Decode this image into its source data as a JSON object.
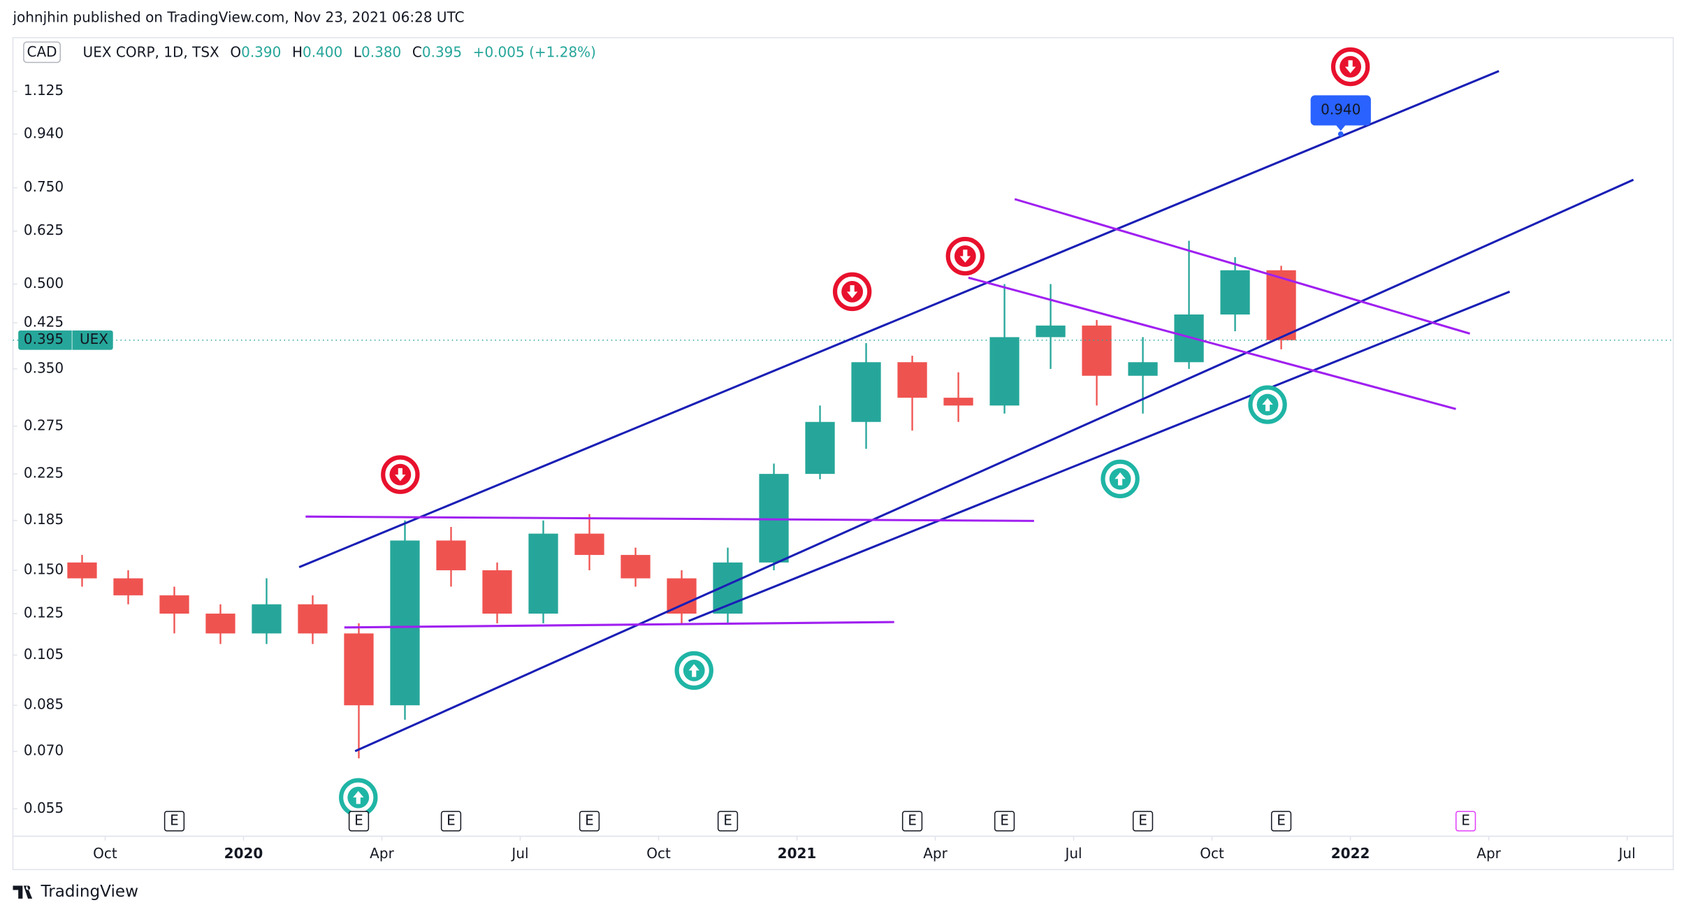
{
  "header": {
    "publisher": "johnjhin published on TradingView.com, Nov 23, 2021 06:28 UTC"
  },
  "legend": {
    "currency": "CAD",
    "symbol": "UEX CORP, 1D, TSX",
    "o_label": "O",
    "open": "0.390",
    "h_label": "H",
    "high": "0.400",
    "l_label": "L",
    "low": "0.380",
    "c_label": "C",
    "close": "0.395",
    "change": "+0.005 (+1.28%)"
  },
  "footer": {
    "brand": "TradingView"
  },
  "chart_data": {
    "type": "candlestick",
    "log_scale": true,
    "up_color": "#26a69a",
    "down_color": "#ef5350",
    "x": [
      "2019-09",
      "2019-10",
      "2019-11",
      "2019-12",
      "2020-01",
      "2020-02",
      "2020-03",
      "2020-04",
      "2020-05",
      "2020-06",
      "2020-07",
      "2020-08",
      "2020-09",
      "2020-10",
      "2020-11",
      "2020-12",
      "2021-01",
      "2021-02",
      "2021-03",
      "2021-04",
      "2021-05",
      "2021-06",
      "2021-07",
      "2021-08",
      "2021-09",
      "2021-10",
      "2021-11"
    ],
    "open": [
      0.155,
      0.145,
      0.135,
      0.125,
      0.115,
      0.13,
      0.115,
      0.085,
      0.17,
      0.15,
      0.125,
      0.175,
      0.16,
      0.145,
      0.125,
      0.155,
      0.225,
      0.28,
      0.36,
      0.31,
      0.3,
      0.4,
      0.42,
      0.34,
      0.36,
      0.44,
      0.53
    ],
    "high": [
      0.16,
      0.15,
      0.14,
      0.13,
      0.145,
      0.135,
      0.12,
      0.185,
      0.18,
      0.155,
      0.185,
      0.19,
      0.165,
      0.15,
      0.165,
      0.235,
      0.3,
      0.39,
      0.37,
      0.345,
      0.5,
      0.5,
      0.43,
      0.4,
      0.6,
      0.56,
      0.54
    ],
    "low": [
      0.14,
      0.13,
      0.115,
      0.11,
      0.11,
      0.11,
      0.068,
      0.08,
      0.14,
      0.12,
      0.12,
      0.15,
      0.14,
      0.12,
      0.12,
      0.15,
      0.22,
      0.25,
      0.27,
      0.28,
      0.29,
      0.35,
      0.3,
      0.29,
      0.35,
      0.41,
      0.38
    ],
    "close": [
      0.145,
      0.135,
      0.125,
      0.115,
      0.13,
      0.115,
      0.085,
      0.17,
      0.15,
      0.125,
      0.175,
      0.16,
      0.145,
      0.125,
      0.155,
      0.225,
      0.28,
      0.36,
      0.31,
      0.3,
      0.4,
      0.42,
      0.34,
      0.36,
      0.44,
      0.53,
      0.395
    ],
    "xlim": [
      "2019-08",
      "2022-08"
    ],
    "xticks": [
      {
        "value": "2019-10",
        "label": "Oct"
      },
      {
        "value": "2020-01",
        "label": "2020"
      },
      {
        "value": "2020-04",
        "label": "Apr"
      },
      {
        "value": "2020-07",
        "label": "Jul"
      },
      {
        "value": "2020-10",
        "label": "Oct"
      },
      {
        "value": "2021-01",
        "label": "2021"
      },
      {
        "value": "2021-04",
        "label": "Apr"
      },
      {
        "value": "2021-07",
        "label": "Jul"
      },
      {
        "value": "2021-10",
        "label": "Oct"
      },
      {
        "value": "2022-01",
        "label": "2022"
      },
      {
        "value": "2022-04",
        "label": "Apr"
      },
      {
        "value": "2022-07",
        "label": "Jul"
      }
    ],
    "ylim": [
      0.049,
      1.41
    ],
    "yticks": [
      0.055,
      {
        "value": 0.07,
        "label": "0.070"
      },
      0.085,
      0.105,
      0.125,
      {
        "value": 0.15,
        "label": "0.150"
      },
      0.185,
      0.225,
      0.275,
      {
        "value": 0.35,
        "label": "0.350"
      },
      0.425,
      {
        "value": 0.5,
        "label": "0.500"
      },
      0.625,
      {
        "value": 0.75,
        "label": "0.750"
      },
      {
        "value": 0.94,
        "label": "0.940"
      },
      1.125
    ],
    "last_price": {
      "value": 0.395,
      "label": "0.395",
      "ticker": "UEX"
    },
    "target": {
      "value": 0.94,
      "label": "0.940"
    },
    "events": [
      {
        "x": "2019-11",
        "label": "E",
        "color": "#131722"
      },
      {
        "x": "2020-03",
        "label": "E",
        "color": "#131722"
      },
      {
        "x": "2020-05",
        "label": "E",
        "color": "#131722"
      },
      {
        "x": "2020-08",
        "label": "E",
        "color": "#131722"
      },
      {
        "x": "2020-11",
        "label": "E",
        "color": "#131722"
      },
      {
        "x": "2021-03",
        "label": "E",
        "color": "#131722"
      },
      {
        "x": "2021-05",
        "label": "E",
        "color": "#131722"
      },
      {
        "x": "2021-08",
        "label": "E",
        "color": "#131722"
      },
      {
        "x": "2021-11",
        "label": "E",
        "color": "#131722"
      },
      {
        "x": "2022-03",
        "label": "E",
        "color": "#e040fb"
      }
    ]
  }
}
